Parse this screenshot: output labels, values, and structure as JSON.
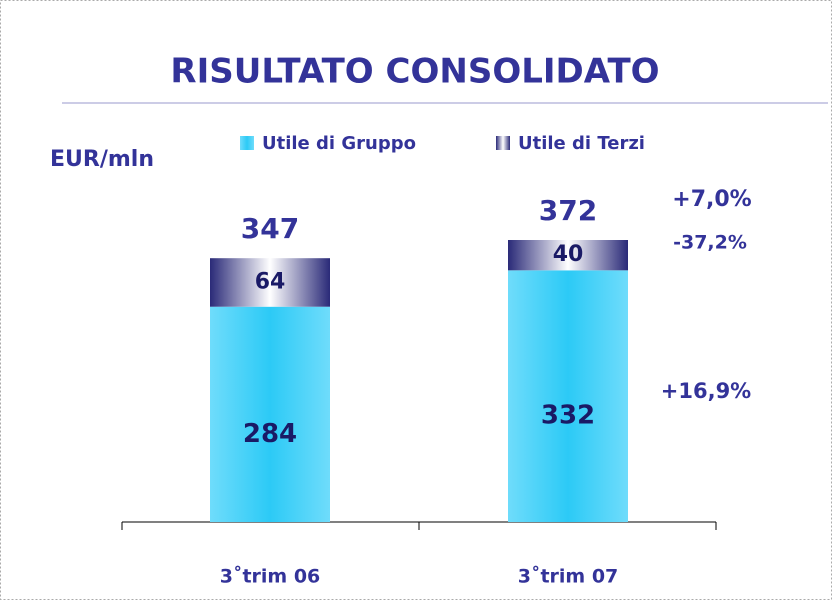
{
  "chart_data": {
    "type": "stacked_bar",
    "title": "RISULTATO CONSOLIDATO",
    "unit_label": "EUR/mln",
    "categories": [
      "3˚trim 06",
      "3˚trim 07"
    ],
    "series": [
      {
        "name": "Utile di Gruppo",
        "color": "#2ccaf6",
        "values": [
          284,
          332
        ]
      },
      {
        "name": "Utile di Terzi",
        "color": "#2a2a78",
        "values": [
          64,
          40
        ]
      }
    ],
    "totals": [
      347,
      372
    ],
    "annotations": [
      "+7,0%",
      "-37,2%",
      "+16,9%"
    ]
  }
}
